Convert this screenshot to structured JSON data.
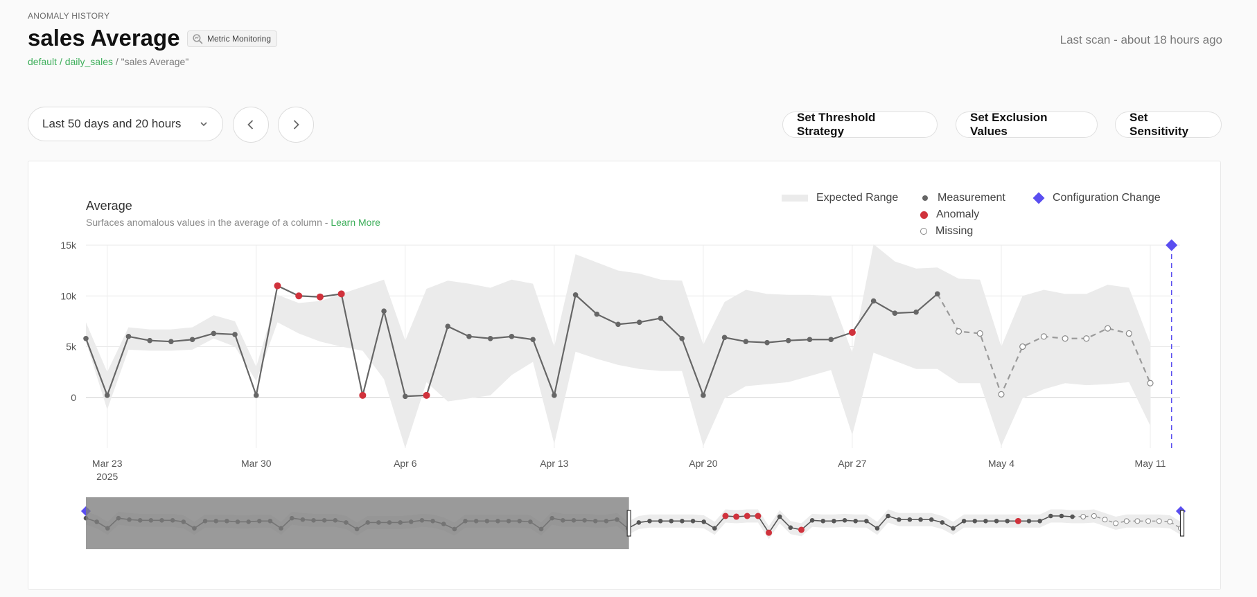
{
  "header": {
    "eyebrow": "ANOMALY HISTORY",
    "title": "sales Average",
    "badge": "Metric Monitoring",
    "breadcrumb_db": "default",
    "breadcrumb_sep": "/",
    "breadcrumb_table": "daily_sales",
    "breadcrumb_rest": " / \"sales Average\"",
    "last_scan": "Last scan - about 18 hours ago"
  },
  "controls": {
    "range": "Last 50 days and 20 hours",
    "threshold_label": "Set Threshold Strategy",
    "exclusion_label": "Set Exclusion Values",
    "sensitivity_label": "Set Sensitivity"
  },
  "colors": {
    "measurement": "#666666",
    "anomaly": "#d0323c",
    "expected_range": "#ebebeb",
    "config_change": "#5a4ef0",
    "link_green": "#3dae5a"
  },
  "chart_data": {
    "type": "line",
    "title": "Average",
    "subtitle": "Surfaces anomalous values in the average of a column - ",
    "learn_more": "Learn More",
    "legend": {
      "range": "Expected Range",
      "measurement": "Measurement",
      "anomaly": "Anomaly",
      "missing": "Missing",
      "config": "Configuration Change"
    },
    "y_ticks": [
      "15k",
      "10k",
      "5k",
      "0"
    ],
    "ylim": [
      -5000,
      15000
    ],
    "x_ticks": [
      {
        "label": "Mar 23",
        "sub": "2025",
        "day": 2
      },
      {
        "label": "Mar 30",
        "sub": "",
        "day": 9
      },
      {
        "label": "Apr 6",
        "sub": "",
        "day": 16
      },
      {
        "label": "Apr 13",
        "sub": "",
        "day": 23
      },
      {
        "label": "Apr 20",
        "sub": "",
        "day": 30
      },
      {
        "label": "Apr 27",
        "sub": "",
        "day": 37
      },
      {
        "label": "May 4",
        "sub": "",
        "day": 44
      },
      {
        "label": "May 11",
        "sub": "",
        "day": 51
      }
    ],
    "xlim": [
      1,
      52.4
    ],
    "measurement": [
      [
        1,
        5800
      ],
      [
        2,
        200
      ],
      [
        3,
        6000
      ],
      [
        4,
        5600
      ],
      [
        5,
        5500
      ],
      [
        6,
        5700
      ],
      [
        7,
        6300
      ],
      [
        8,
        6200
      ],
      [
        9,
        200
      ],
      [
        10,
        11000
      ],
      [
        11,
        10000
      ],
      [
        12,
        9900
      ],
      [
        13,
        10200
      ],
      [
        14,
        200
      ],
      [
        15,
        8500
      ],
      [
        16,
        100
      ],
      [
        17,
        200
      ],
      [
        18,
        7000
      ],
      [
        19,
        6000
      ],
      [
        20,
        5800
      ],
      [
        21,
        6000
      ],
      [
        22,
        5700
      ],
      [
        23,
        200
      ],
      [
        24,
        10100
      ],
      [
        25,
        8200
      ],
      [
        26,
        7200
      ],
      [
        27,
        7400
      ],
      [
        28,
        7800
      ],
      [
        29,
        5800
      ],
      [
        30,
        200
      ],
      [
        31,
        5900
      ],
      [
        32,
        5500
      ],
      [
        33,
        5400
      ],
      [
        34,
        5600
      ],
      [
        35,
        5700
      ],
      [
        36,
        5700
      ],
      [
        37,
        6400
      ],
      [
        38,
        9500
      ],
      [
        39,
        8300
      ],
      [
        40,
        8400
      ],
      [
        41,
        10200
      ]
    ],
    "anomalies": [
      [
        10,
        11000
      ],
      [
        11,
        10000
      ],
      [
        12,
        9900
      ],
      [
        13,
        10200
      ],
      [
        14,
        200
      ],
      [
        17,
        200
      ],
      [
        37,
        6400
      ]
    ],
    "missing": [
      [
        41,
        10200
      ],
      [
        42,
        6500
      ],
      [
        43,
        6300
      ],
      [
        44,
        300
      ],
      [
        45,
        5000
      ],
      [
        46,
        6000
      ],
      [
        47,
        5800
      ],
      [
        48,
        5800
      ],
      [
        49,
        6800
      ],
      [
        50,
        6300
      ],
      [
        51,
        1400
      ]
    ],
    "expected_upper": [
      [
        1,
        7400
      ],
      [
        2,
        2500
      ],
      [
        3,
        6900
      ],
      [
        4,
        6700
      ],
      [
        5,
        6700
      ],
      [
        6,
        6900
      ],
      [
        7,
        8100
      ],
      [
        8,
        7500
      ],
      [
        9,
        3000
      ],
      [
        10,
        10100
      ],
      [
        11,
        9300
      ],
      [
        12,
        9500
      ],
      [
        13,
        10200
      ],
      [
        14,
        10900
      ],
      [
        15,
        11600
      ],
      [
        16,
        5600
      ],
      [
        17,
        10700
      ],
      [
        18,
        11500
      ],
      [
        19,
        11200
      ],
      [
        20,
        10800
      ],
      [
        21,
        11600
      ],
      [
        22,
        11200
      ],
      [
        23,
        5000
      ],
      [
        24,
        14100
      ],
      [
        25,
        13300
      ],
      [
        26,
        12500
      ],
      [
        27,
        12200
      ],
      [
        28,
        11600
      ],
      [
        29,
        11500
      ],
      [
        30,
        5200
      ],
      [
        31,
        9400
      ],
      [
        32,
        10600
      ],
      [
        33,
        10200
      ],
      [
        34,
        10100
      ],
      [
        35,
        10100
      ],
      [
        36,
        10000
      ],
      [
        37,
        4400
      ],
      [
        38,
        15100
      ],
      [
        39,
        13400
      ],
      [
        40,
        12700
      ],
      [
        41,
        12800
      ],
      [
        42,
        11700
      ],
      [
        43,
        11600
      ],
      [
        44,
        5000
      ],
      [
        45,
        10000
      ],
      [
        46,
        10600
      ],
      [
        47,
        10200
      ],
      [
        48,
        10200
      ],
      [
        49,
        11100
      ],
      [
        50,
        10800
      ],
      [
        51,
        5300
      ]
    ],
    "expected_lower": [
      [
        1,
        5500
      ],
      [
        2,
        -1200
      ],
      [
        3,
        4700
      ],
      [
        4,
        4600
      ],
      [
        5,
        4600
      ],
      [
        6,
        4700
      ],
      [
        7,
        5800
      ],
      [
        8,
        5000
      ],
      [
        9,
        1600
      ],
      [
        10,
        7400
      ],
      [
        11,
        6300
      ],
      [
        12,
        5500
      ],
      [
        13,
        5000
      ],
      [
        14,
        4600
      ],
      [
        15,
        1800
      ],
      [
        16,
        -5000
      ],
      [
        17,
        1500
      ],
      [
        18,
        -400
      ],
      [
        19,
        -100
      ],
      [
        20,
        200
      ],
      [
        21,
        2200
      ],
      [
        22,
        3500
      ],
      [
        23,
        -4600
      ],
      [
        24,
        4500
      ],
      [
        25,
        3800
      ],
      [
        26,
        3200
      ],
      [
        27,
        2800
      ],
      [
        28,
        2600
      ],
      [
        29,
        2600
      ],
      [
        30,
        -4800
      ],
      [
        31,
        -100
      ],
      [
        32,
        1100
      ],
      [
        33,
        1300
      ],
      [
        34,
        1500
      ],
      [
        35,
        2100
      ],
      [
        36,
        2700
      ],
      [
        37,
        -3700
      ],
      [
        38,
        4400
      ],
      [
        39,
        3600
      ],
      [
        40,
        2800
      ],
      [
        41,
        2800
      ],
      [
        42,
        1400
      ],
      [
        43,
        1400
      ],
      [
        44,
        -4800
      ],
      [
        45,
        -100
      ],
      [
        46,
        800
      ],
      [
        47,
        1400
      ],
      [
        48,
        1200
      ],
      [
        49,
        1300
      ],
      [
        50,
        1500
      ],
      [
        51,
        -2800
      ]
    ],
    "config_change_day": 52
  },
  "overview": {
    "selection_fraction": [
      0,
      0.496
    ],
    "measurement": [
      6200,
      5700,
      4800,
      6200,
      6000,
      5900,
      5900,
      5900,
      5900,
      5700,
      4800,
      5800,
      5800,
      5800,
      5700,
      5700,
      5800,
      5800,
      4800,
      6200,
      6000,
      5900,
      5900,
      5900,
      5600,
      4700,
      5600,
      5600,
      5600,
      5600,
      5700,
      5900,
      5800,
      5400,
      4700,
      5800,
      5800,
      5800,
      5800,
      5800,
      5800,
      5700,
      4700,
      6200,
      5900,
      5900,
      5900,
      5800,
      5800,
      6000,
      4800,
      5600,
      5800,
      5800,
      5800,
      5800,
      5800,
      5700,
      4800,
      6500,
      6400,
      6500,
      6500,
      4200,
      6400,
      4900,
      4600,
      5900,
      5800,
      5800,
      5900,
      5800,
      5800,
      4800,
      6500,
      6000,
      6000,
      6000,
      6000,
      5600,
      4800,
      5800,
      5800,
      5800,
      5800,
      5800,
      5800,
      5800,
      5800,
      6500,
      6500,
      6400,
      6400,
      6500,
      6000,
      5500,
      5800,
      5800,
      5800,
      5800,
      5700,
      4800
    ],
    "anomaly_indices": [
      59,
      60,
      61,
      62,
      63,
      66,
      86
    ],
    "missing_from_index": 91
  }
}
